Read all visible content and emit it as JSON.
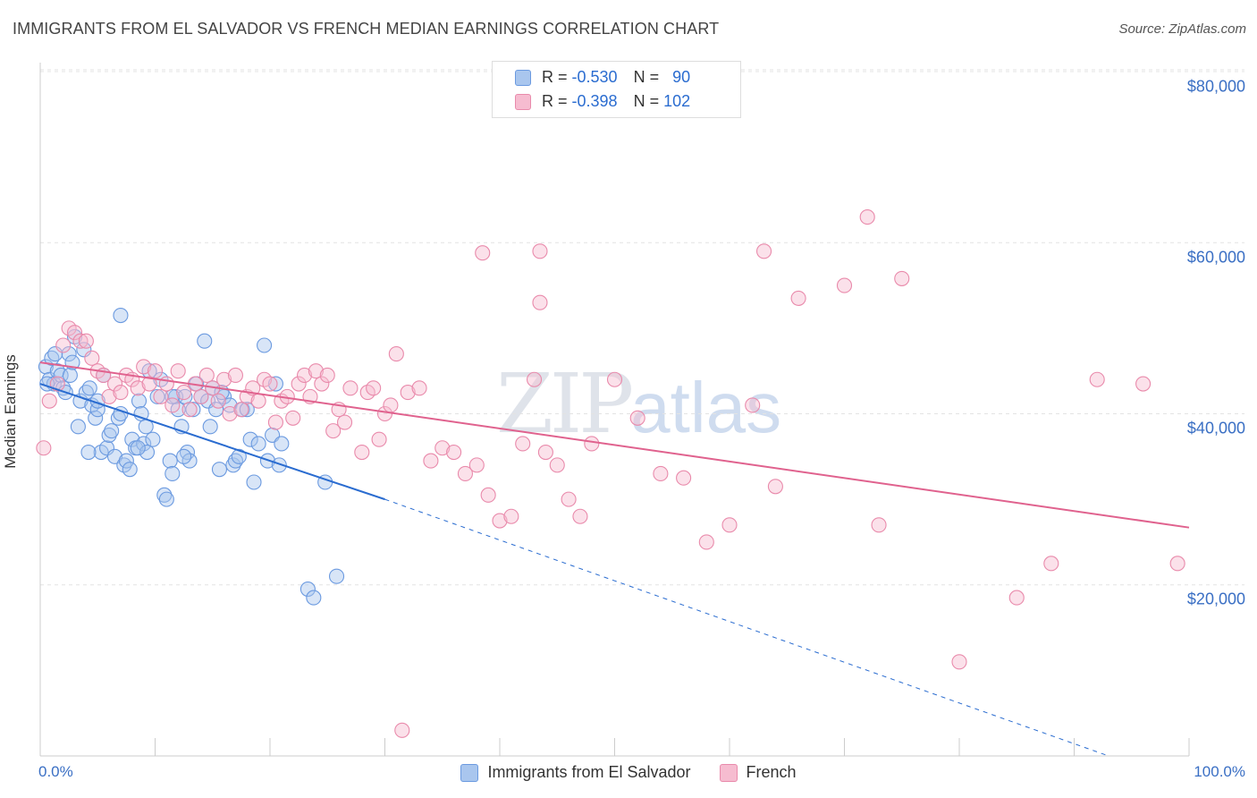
{
  "title": "IMMIGRANTS FROM EL SALVADOR VS FRENCH MEDIAN EARNINGS CORRELATION CHART",
  "source": "Source: ZipAtlas.com",
  "watermark": {
    "zip": "ZIP",
    "atlas": "atlas"
  },
  "legend": {
    "rows": [
      {
        "r_label": "R =",
        "r_value": "-0.530",
        "n_label": "N =",
        "n_value": "90",
        "color": "#a9c6ee",
        "border": "#6b9ae0"
      },
      {
        "r_label": "R =",
        "r_value": "-0.398",
        "n_label": "N =",
        "n_value": "102",
        "color": "#f6bcd0",
        "border": "#e98aab"
      }
    ]
  },
  "bottom_legend": [
    {
      "label": "Immigrants from El Salvador",
      "color": "#a9c6ee",
      "border": "#6b9ae0"
    },
    {
      "label": "French",
      "color": "#f6bcd0",
      "border": "#e98aab"
    }
  ],
  "chart_data": {
    "type": "scatter",
    "title": "IMMIGRANTS FROM EL SALVADOR VS FRENCH MEDIAN EARNINGS CORRELATION CHART",
    "xlabel": "",
    "ylabel": "Median Earnings",
    "xlim": [
      0,
      100
    ],
    "ylim": [
      0,
      82000
    ],
    "x_tick_labels": [
      "0.0%",
      "100.0%"
    ],
    "y_ticks": [
      20000,
      40000,
      60000,
      80000
    ],
    "y_tick_labels": [
      "$20,000",
      "$40,000",
      "$60,000",
      "$80,000"
    ],
    "grid": true,
    "legend_placement": "top-center",
    "series": [
      {
        "name": "Immigrants from El Salvador",
        "color": "#6b9ae0",
        "fill": "rgba(169,198,238,0.45)",
        "trend": {
          "x0": 0,
          "y0": 43500,
          "x1": 30,
          "y1": 30000,
          "dash_to_x": 93,
          "dash_to_y": 0,
          "color": "#2a6cd0"
        },
        "points": [
          [
            0.5,
            45500
          ],
          [
            0.8,
            44000
          ],
          [
            1.0,
            46500
          ],
          [
            1.2,
            43500
          ],
          [
            1.5,
            45000
          ],
          [
            1.8,
            44500
          ],
          [
            2.0,
            43000
          ],
          [
            2.5,
            47000
          ],
          [
            3.0,
            49000
          ],
          [
            3.3,
            38500
          ],
          [
            3.5,
            41500
          ],
          [
            4.0,
            42500
          ],
          [
            4.3,
            43000
          ],
          [
            4.5,
            41000
          ],
          [
            4.8,
            39500
          ],
          [
            5.0,
            40500
          ],
          [
            5.3,
            35500
          ],
          [
            5.5,
            44500
          ],
          [
            5.8,
            36000
          ],
          [
            6.0,
            37500
          ],
          [
            6.5,
            35000
          ],
          [
            6.8,
            39500
          ],
          [
            7.0,
            40000
          ],
          [
            7.3,
            34000
          ],
          [
            7.5,
            34500
          ],
          [
            7.8,
            33500
          ],
          [
            8.0,
            37000
          ],
          [
            8.3,
            36000
          ],
          [
            8.6,
            41500
          ],
          [
            8.8,
            40000
          ],
          [
            9.0,
            36500
          ],
          [
            9.3,
            35500
          ],
          [
            9.5,
            45000
          ],
          [
            9.8,
            37000
          ],
          [
            10.2,
            42000
          ],
          [
            10.5,
            44000
          ],
          [
            10.8,
            30500
          ],
          [
            11.0,
            30000
          ],
          [
            11.3,
            34500
          ],
          [
            11.5,
            33000
          ],
          [
            11.8,
            42000
          ],
          [
            12.0,
            40500
          ],
          [
            12.3,
            38500
          ],
          [
            12.6,
            42000
          ],
          [
            12.8,
            35500
          ],
          [
            13.0,
            34500
          ],
          [
            13.3,
            40500
          ],
          [
            13.6,
            43500
          ],
          [
            14.0,
            42000
          ],
          [
            14.3,
            48500
          ],
          [
            14.6,
            41500
          ],
          [
            15.0,
            43000
          ],
          [
            15.3,
            40500
          ],
          [
            15.6,
            33500
          ],
          [
            16.0,
            42000
          ],
          [
            16.5,
            41000
          ],
          [
            16.8,
            34000
          ],
          [
            17.0,
            34500
          ],
          [
            17.3,
            35000
          ],
          [
            17.6,
            40500
          ],
          [
            18.0,
            40500
          ],
          [
            18.3,
            37000
          ],
          [
            18.6,
            32000
          ],
          [
            19.0,
            36500
          ],
          [
            19.5,
            48000
          ],
          [
            19.8,
            34500
          ],
          [
            20.2,
            37500
          ],
          [
            20.5,
            43500
          ],
          [
            20.8,
            34000
          ],
          [
            21.0,
            36500
          ],
          [
            2.2,
            42500
          ],
          [
            2.6,
            44500
          ],
          [
            3.8,
            47500
          ],
          [
            6.2,
            38000
          ],
          [
            9.2,
            38500
          ],
          [
            12.5,
            35000
          ],
          [
            7.0,
            51500
          ],
          [
            15.8,
            42500
          ],
          [
            1.3,
            47000
          ],
          [
            2.8,
            46000
          ],
          [
            23.3,
            19500
          ],
          [
            23.8,
            18500
          ],
          [
            25.8,
            21000
          ],
          [
            24.8,
            32000
          ],
          [
            5.0,
            41500
          ],
          [
            4.2,
            35500
          ],
          [
            8.5,
            36000
          ],
          [
            11.5,
            42000
          ],
          [
            14.8,
            38500
          ],
          [
            0.6,
            43500
          ]
        ]
      },
      {
        "name": "French",
        "color": "#e98aab",
        "fill": "rgba(246,188,208,0.45)",
        "trend": {
          "x0": 0,
          "y0": 46000,
          "x1": 100,
          "y1": 26700,
          "color": "#e0628e"
        },
        "points": [
          [
            0.3,
            36000
          ],
          [
            0.8,
            41500
          ],
          [
            1.5,
            43500
          ],
          [
            2.0,
            48000
          ],
          [
            2.5,
            50000
          ],
          [
            3.0,
            49500
          ],
          [
            3.5,
            48500
          ],
          [
            4.0,
            48500
          ],
          [
            4.5,
            46500
          ],
          [
            5.0,
            45000
          ],
          [
            5.5,
            44500
          ],
          [
            6.0,
            42000
          ],
          [
            6.5,
            43500
          ],
          [
            7.0,
            42500
          ],
          [
            7.5,
            44500
          ],
          [
            8.0,
            44000
          ],
          [
            8.5,
            43000
          ],
          [
            9.0,
            45500
          ],
          [
            9.5,
            43500
          ],
          [
            10.0,
            45000
          ],
          [
            10.5,
            42000
          ],
          [
            11.0,
            43500
          ],
          [
            11.5,
            41000
          ],
          [
            12.0,
            45000
          ],
          [
            12.5,
            42500
          ],
          [
            13.0,
            40500
          ],
          [
            13.5,
            43500
          ],
          [
            14.0,
            42000
          ],
          [
            14.5,
            44500
          ],
          [
            15.0,
            43000
          ],
          [
            15.5,
            41500
          ],
          [
            16.0,
            44000
          ],
          [
            16.5,
            40000
          ],
          [
            17.0,
            44500
          ],
          [
            17.5,
            40500
          ],
          [
            18.0,
            42000
          ],
          [
            18.5,
            43000
          ],
          [
            19.0,
            41500
          ],
          [
            19.5,
            44000
          ],
          [
            20.0,
            43500
          ],
          [
            20.5,
            39000
          ],
          [
            21.0,
            41500
          ],
          [
            21.5,
            42000
          ],
          [
            22.0,
            39500
          ],
          [
            22.5,
            43500
          ],
          [
            23.0,
            44500
          ],
          [
            23.5,
            42000
          ],
          [
            24.0,
            45000
          ],
          [
            24.5,
            43500
          ],
          [
            25.0,
            44500
          ],
          [
            25.5,
            38000
          ],
          [
            26.0,
            40500
          ],
          [
            26.5,
            39000
          ],
          [
            27.0,
            43000
          ],
          [
            28.0,
            35500
          ],
          [
            28.5,
            42500
          ],
          [
            29.0,
            43000
          ],
          [
            29.5,
            37000
          ],
          [
            30.0,
            40000
          ],
          [
            30.5,
            41000
          ],
          [
            31.0,
            47000
          ],
          [
            32.0,
            42500
          ],
          [
            33.0,
            43000
          ],
          [
            34.0,
            34500
          ],
          [
            35.0,
            36000
          ],
          [
            36.0,
            35500
          ],
          [
            37.0,
            33000
          ],
          [
            38.0,
            34000
          ],
          [
            39.0,
            30500
          ],
          [
            40.0,
            27500
          ],
          [
            41.0,
            28000
          ],
          [
            42.0,
            36500
          ],
          [
            43.0,
            44000
          ],
          [
            44.0,
            35500
          ],
          [
            45.0,
            34000
          ],
          [
            46.0,
            30000
          ],
          [
            47.0,
            28000
          ],
          [
            48.0,
            36500
          ],
          [
            50.0,
            44000
          ],
          [
            52.0,
            39500
          ],
          [
            54.0,
            33000
          ],
          [
            56.0,
            32500
          ],
          [
            58.0,
            25000
          ],
          [
            60.0,
            27000
          ],
          [
            62.0,
            41000
          ],
          [
            63.0,
            59000
          ],
          [
            64.0,
            31500
          ],
          [
            66.0,
            53500
          ],
          [
            70.0,
            55000
          ],
          [
            72.0,
            63000
          ],
          [
            73.0,
            27000
          ],
          [
            75.0,
            55800
          ],
          [
            80.0,
            11000
          ],
          [
            85.0,
            18500
          ],
          [
            88.0,
            22500
          ],
          [
            92.0,
            44000
          ],
          [
            96.0,
            43500
          ],
          [
            99.0,
            22500
          ],
          [
            31.5,
            3000
          ],
          [
            38.5,
            58800
          ],
          [
            43.5,
            59000
          ],
          [
            43.5,
            53000
          ]
        ]
      }
    ]
  }
}
